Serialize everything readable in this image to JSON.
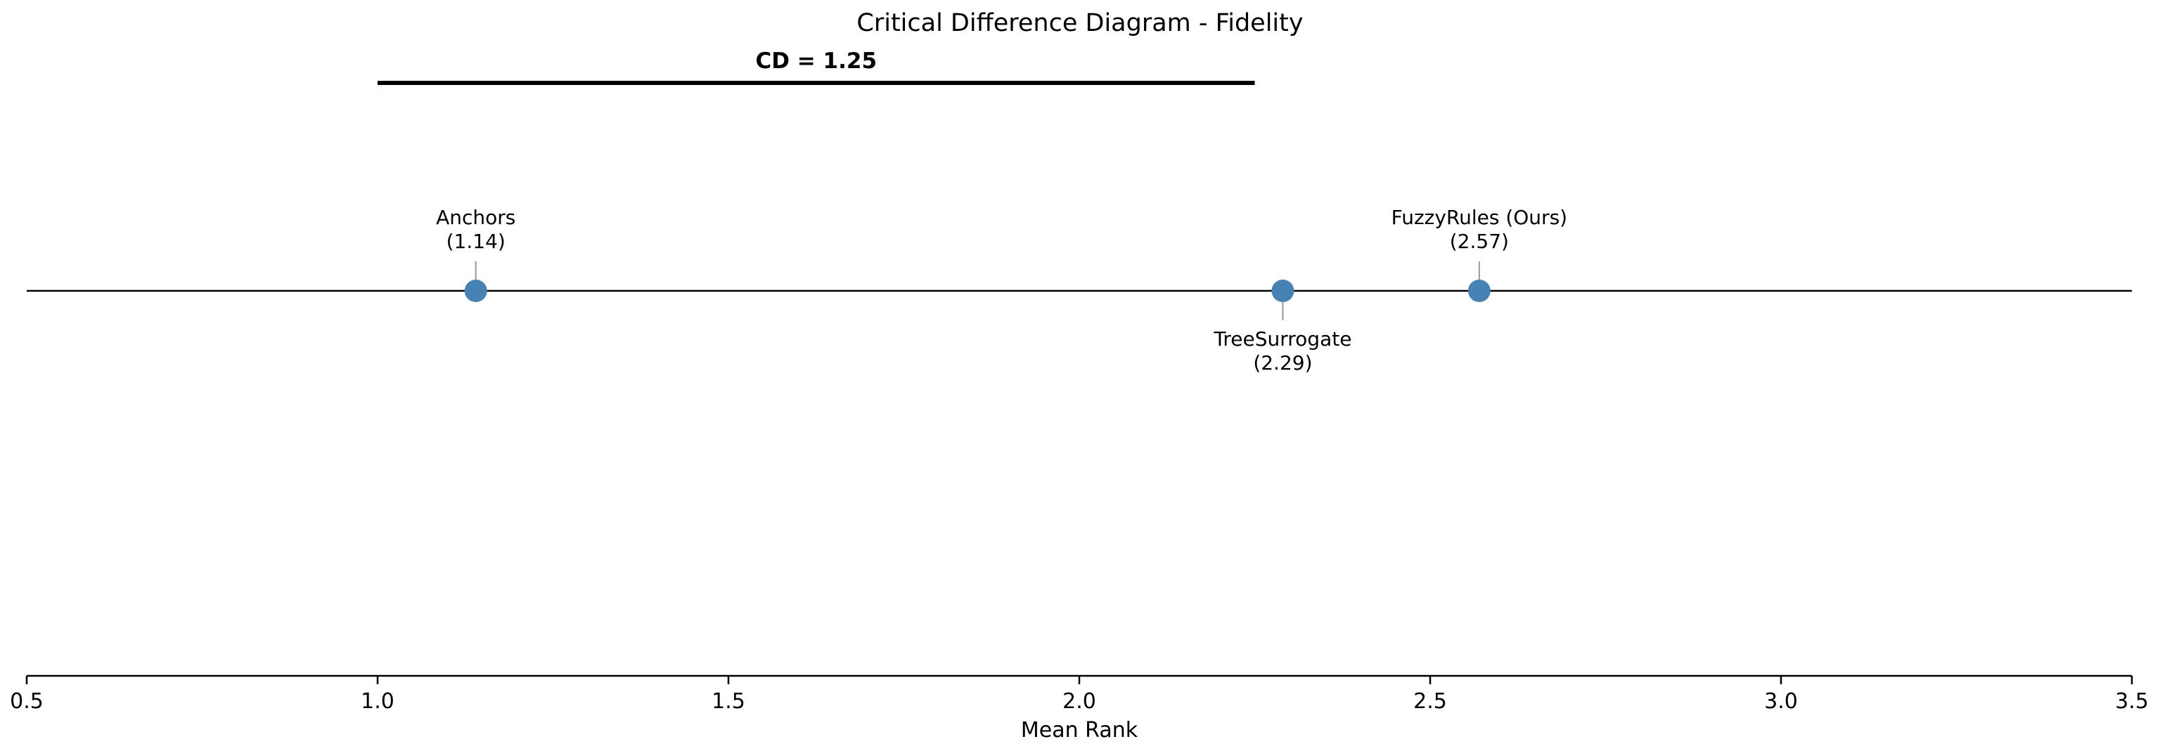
{
  "chart_data": {
    "type": "scatter",
    "title": "Critical Difference Diagram - Fidelity",
    "xlabel": "Mean Rank",
    "ylabel": "",
    "xlim": [
      0.5,
      3.5
    ],
    "xticks": [
      0.5,
      1.0,
      1.5,
      2.0,
      2.5,
      3.0,
      3.5
    ],
    "tick_labels": [
      "0.5",
      "1.0",
      "1.5",
      "2.0",
      "2.5",
      "3.0",
      "3.5"
    ],
    "grid": false,
    "critical_difference": {
      "label": "CD = 1.25",
      "value": 1.25,
      "start": 1.0,
      "end": 2.25
    },
    "methods": [
      {
        "name": "Anchors",
        "rank_label": "(1.14)",
        "rank": 1.14,
        "label_side": "above"
      },
      {
        "name": "TreeSurrogate",
        "rank_label": "(2.29)",
        "rank": 2.29,
        "label_side": "below"
      },
      {
        "name": "FuzzyRules (Ours)",
        "rank_label": "(2.57)",
        "rank": 2.57,
        "label_side": "above"
      }
    ],
    "colors": {
      "marker": "#4682b4",
      "line": "#000000",
      "connector": "#999999"
    }
  }
}
